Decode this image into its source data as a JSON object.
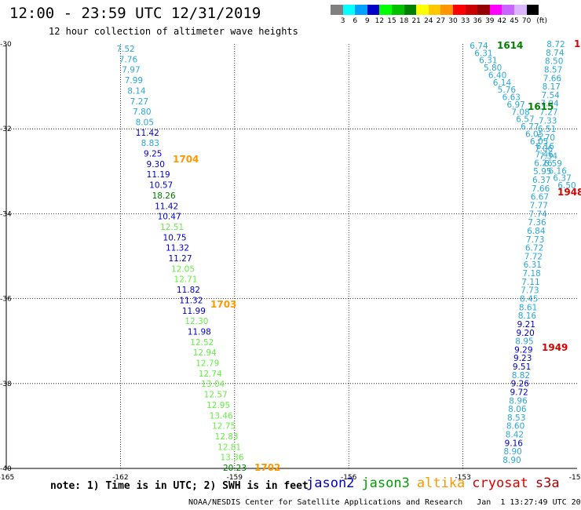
{
  "header": {
    "title": "12:00 - 23:59 UTC 12/31/2019",
    "subtitle": "12 hour collection of altimeter wave heights"
  },
  "legend": {
    "unit": "(ft)",
    "colors": [
      "#808080",
      "#00ffff",
      "#00a0ff",
      "#0000c8",
      "#00ff00",
      "#00c000",
      "#008000",
      "#ffff00",
      "#ffc800",
      "#ff9600",
      "#ff0000",
      "#c80000",
      "#960000",
      "#ff00ff",
      "#c864ff",
      "#dcb4ff",
      "#000000"
    ],
    "labels": [
      "3",
      "6",
      "9",
      "12",
      "15",
      "18",
      "21",
      "24",
      "27",
      "30",
      "33",
      "36",
      "39",
      "42",
      "45",
      "70"
    ]
  },
  "axes": {
    "x_ticks": [
      "-165",
      "-162",
      "-159",
      "-156",
      "-153",
      "-150"
    ],
    "y_ticks": [
      "-30",
      "-32",
      "-34",
      "-36",
      "-38",
      "-40"
    ]
  },
  "note": "note: 1) Time is in UTC; 2) SWH is in feet",
  "satellites": [
    {
      "name": "jason2",
      "color": "#0000cc"
    },
    {
      "name": "jason3",
      "color": "#00a000"
    },
    {
      "name": "altika",
      "color": "#ff9900"
    },
    {
      "name": "cryosat",
      "color": "#dd0000"
    },
    {
      "name": "s3a",
      "color": "#b00000"
    }
  ],
  "credit": "NOAA/NESDIS Center for Satellite Applications and Research   Jan  1 13:27:49 UTC 2020",
  "colors": {
    "light_blue": "#2aa8d8",
    "dark_blue": "#0000cc",
    "dark_green": "#008000",
    "light_green": "#66ee44",
    "orange": "#ff9900",
    "red": "#dd0000"
  },
  "track_left": {
    "values": [
      "7.52",
      "7.76",
      "7.97",
      "7.99",
      "8.14",
      "7.27",
      "7.80",
      "8.05",
      "11.42",
      "8.83",
      "9.25",
      "9.30",
      "11.19",
      "10.57",
      "18.26",
      "11.42",
      "10.47",
      "12.51",
      "10.75",
      "11.32",
      "11.27",
      "12.05",
      "12.71",
      "11.82",
      "11.32",
      "11.99",
      "12.30",
      "11.98",
      "12.52",
      "12.94",
      "12.79",
      "12.74",
      "13.04",
      "12.57",
      "12.95",
      "13.46",
      "12.75",
      "12.83",
      "12.81",
      "13.36",
      "20.23"
    ],
    "colors": [
      "lb",
      "lb",
      "lb",
      "lb",
      "lb",
      "lb",
      "lb",
      "lb",
      "db",
      "lb",
      "db",
      "db",
      "db",
      "db",
      "dg",
      "db",
      "db",
      "lg",
      "db",
      "db",
      "db",
      "lg",
      "lg",
      "db",
      "db",
      "db",
      "lg",
      "db",
      "lg",
      "lg",
      "lg",
      "lg",
      "lg",
      "lg",
      "lg",
      "lg",
      "lg",
      "lg",
      "lg",
      "lg",
      "dg"
    ]
  },
  "track_right": {
    "values": [
      "8.72",
      "8.74",
      "8.50",
      "8.57",
      "7.66",
      "8.17",
      "7.54",
      "7.94",
      "7.27",
      "7.33",
      "6.51",
      "5.70",
      "6.16",
      "7.46",
      "6.26",
      "5.95",
      "6.37",
      "7.66",
      "6.67",
      "7.77",
      "7.74",
      "7.36",
      "6.84",
      "7.73",
      "6.72",
      "7.72",
      "6.31",
      "7.18",
      "7.11",
      "7.73",
      "8.45",
      "8.61",
      "8.16",
      "9.21",
      "9.20",
      "8.95",
      "9.29",
      "9.23",
      "9.51",
      "8.82",
      "9.26",
      "9.72",
      "8.96",
      "8.06",
      "8.53",
      "8.60",
      "8.42",
      "9.16",
      "8.90",
      "8.90"
    ],
    "colors": [
      "lb",
      "lb",
      "lb",
      "lb",
      "lb",
      "lb",
      "lb",
      "lb",
      "lb",
      "lb",
      "lb",
      "lb",
      "lb",
      "lb",
      "lb",
      "lb",
      "lb",
      "lb",
      "lb",
      "lb",
      "lb",
      "lb",
      "lb",
      "lb",
      "lb",
      "lb",
      "lb",
      "lb",
      "lb",
      "lb",
      "lb",
      "lb",
      "lb",
      "db",
      "db",
      "lb",
      "db",
      "db",
      "db",
      "lb",
      "db",
      "db",
      "lb",
      "lb",
      "lb",
      "lb",
      "lb",
      "db",
      "lb",
      "lb"
    ]
  },
  "track_mid": {
    "values": [
      "6.74",
      "6.31",
      "6.31",
      "5.80",
      "6.40",
      "6.14",
      "5.76",
      "6.63",
      "6.97",
      "7.08",
      "6.57",
      "6.77",
      "6.05",
      "6.05",
      "7.06",
      "7.34",
      "6.59",
      "6.16",
      "6.37",
      "6.50"
    ]
  },
  "pass_labels": [
    {
      "text": "1704",
      "color": "#ff9900"
    },
    {
      "text": "1703",
      "color": "#ff9900"
    },
    {
      "text": "1702",
      "color": "#ff9900"
    },
    {
      "text": "1614",
      "color": "#008000"
    },
    {
      "text": "1615",
      "color": "#008000"
    },
    {
      "text": "1948",
      "color": "#dd0000"
    },
    {
      "text": "1949",
      "color": "#dd0000"
    },
    {
      "text": "1",
      "color": "#dd0000"
    }
  ]
}
